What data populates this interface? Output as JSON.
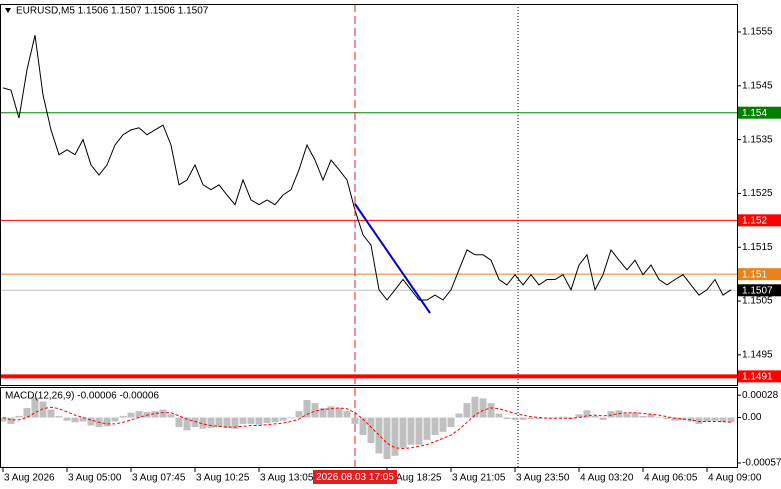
{
  "chart_data": [
    {
      "type": "line",
      "title": "EURUSD,M5 1.1506 1.1507 1.1506 1.1507",
      "color": "#000000",
      "categories": [
        "3 Aug 2026",
        null,
        null,
        null,
        null,
        null,
        null,
        null,
        "3 Aug 05:00",
        null,
        null,
        null,
        null,
        null,
        null,
        null,
        "3 Aug 07:45",
        null,
        null,
        null,
        null,
        null,
        null,
        null,
        "3 Aug 10:25",
        null,
        null,
        null,
        null,
        null,
        null,
        null,
        "3 Aug 13:05",
        null,
        null,
        null,
        null,
        null,
        null,
        null,
        null,
        null,
        null,
        null,
        "2026.08.03 17:05",
        null,
        null,
        null,
        "Aug 18:25",
        null,
        null,
        null,
        null,
        null,
        null,
        null,
        "3 Aug 21:05",
        null,
        null,
        null,
        null,
        null,
        null,
        null,
        "3 Aug 23:50",
        null,
        null,
        null,
        null,
        null,
        null,
        null,
        "4 Aug 03:20",
        null,
        null,
        null,
        null,
        null,
        null,
        null,
        "4 Aug 06:05",
        null,
        null,
        null,
        null,
        null,
        null,
        null,
        "4 Aug 09:00",
        null,
        null,
        null
      ],
      "values": [
        1.15446,
        1.15442,
        1.1539,
        1.1548,
        1.15544,
        1.15433,
        1.15368,
        1.15322,
        1.15331,
        1.15322,
        1.1535,
        1.15303,
        1.15284,
        1.15303,
        1.1534,
        1.15359,
        1.15368,
        1.15372,
        1.15359,
        1.15368,
        1.15377,
        1.1534,
        1.15266,
        1.15275,
        1.15303,
        1.15266,
        1.15257,
        1.15266,
        1.15247,
        1.15229,
        1.15275,
        1.15238,
        1.15229,
        1.15238,
        1.15229,
        1.15247,
        1.15257,
        1.15294,
        1.1534,
        1.15312,
        1.15275,
        1.15312,
        1.15294,
        1.15275,
        1.15219,
        1.15173,
        1.15154,
        1.15071,
        1.15052,
        1.15071,
        1.1509,
        1.15071,
        1.15052,
        1.15052,
        1.15061,
        1.15052,
        1.15071,
        1.15108,
        1.15145,
        1.15136,
        1.15136,
        1.15126,
        1.1509,
        1.1508,
        1.15099,
        1.1508,
        1.15099,
        1.1508,
        1.1509,
        1.1509,
        1.15099,
        1.15071,
        1.15117,
        1.15136,
        1.15071,
        1.15099,
        1.15145,
        1.15126,
        1.15108,
        1.15126,
        1.15099,
        1.15117,
        1.1509,
        1.1508,
        1.1509,
        1.15099,
        1.1508,
        1.15061,
        1.15071,
        1.1509,
        1.15061,
        1.15071
      ],
      "ylim": [
        1.14894,
        1.15602
      ],
      "yticks": [
        1.1555,
        1.1545,
        1.1535,
        1.1525,
        1.1515,
        1.1505,
        1.1495
      ],
      "levels": [
        {
          "value": 1.154,
          "color": "#008000"
        },
        {
          "value": 1.152,
          "color": "#ff0000"
        },
        {
          "value": 1.151,
          "color": "#e8831c"
        },
        {
          "value": 1.1507,
          "color": "#c0c0c0",
          "label_color": "#000000"
        },
        {
          "value": 1.1491,
          "color": "#ff0000",
          "width": 4
        }
      ]
    },
    {
      "type": "macd",
      "title": "MACD(12,26,9) -0.00006 -0.00006",
      "ylim": [
        -0.00062,
        0.00037
      ],
      "yticks": [
        0.00028,
        {
          "value": 0,
          "label": "0.00"
        },
        -0.00057
      ],
      "series": [
        {
          "kind": "bar",
          "color": "#c0c0c0",
          "values": [
            -5e-05,
            -8e-05,
            2e-05,
            0.00012,
            0.00025,
            0.0002,
            0.0001,
            2e-05,
            -4e-05,
            -6e-05,
            -5e-05,
            -0.0001,
            -0.00012,
            -0.00011,
            -5e-05,
            2e-05,
            6e-05,
            8e-05,
            7e-05,
            8e-05,
            0.0001,
            4e-05,
            -0.00012,
            -0.00016,
            -0.00012,
            -0.00014,
            -0.00013,
            -0.00012,
            -0.00013,
            -0.00014,
            -8e-05,
            -8e-05,
            -9e-05,
            -7e-05,
            -6e-05,
            -4e-05,
            -1e-05,
            8e-05,
            0.00022,
            0.00018,
            0.00012,
            0.00014,
            0.00012,
            8e-05,
            -8e-05,
            -0.00022,
            -0.00032,
            -0.00045,
            -0.00052,
            -0.00048,
            -0.00038,
            -0.00034,
            -0.00034,
            -0.00028,
            -0.00022,
            -0.00018,
            -0.00012,
            5e-05,
            0.00018,
            0.00026,
            0.00024,
            0.00018,
            5e-05,
            -2e-05,
            -3e-05,
            -3e-05,
            -2e-05,
            -2e-05,
            -1e-05,
            -1e-05,
            1e-05,
            -2e-05,
            4e-05,
            9e-05,
            2e-05,
            -3e-05,
            8e-05,
            9e-05,
            5e-05,
            6e-05,
            2e-05,
            4e-05,
            1e-05,
            -2e-05,
            -4e-05,
            -3e-05,
            -5e-05,
            -8e-05,
            -5e-05,
            -4e-05,
            -6e-05,
            -6e-05
          ]
        },
        {
          "kind": "dashed",
          "color": "#ff0000",
          "values": [
            0,
            -3e-05,
            -3e-05,
            0,
            6e-05,
            0.00011,
            0.00013,
            0.00011,
            7e-05,
            3e-05,
            0,
            -3e-05,
            -6e-05,
            -8e-05,
            -8e-05,
            -6e-05,
            -3e-05,
            0,
            3e-05,
            5e-05,
            6e-05,
            6e-05,
            2e-05,
            -2e-05,
            -5e-05,
            -8e-05,
            -0.0001,
            -0.00011,
            -0.00012,
            -0.00012,
            -0.00011,
            -0.0001,
            -0.0001,
            -9e-05,
            -8e-05,
            -7e-05,
            -5e-05,
            -2e-05,
            4e-05,
            8e-05,
            0.0001,
            0.00011,
            0.00012,
            0.00011,
            6e-05,
            -2e-05,
            -0.00012,
            -0.00022,
            -0.00032,
            -0.00038,
            -0.00039,
            -0.00038,
            -0.00036,
            -0.00034,
            -0.0003,
            -0.00026,
            -0.00022,
            -0.00015,
            -6e-05,
            3e-05,
            9e-05,
            0.00012,
            0.00011,
            8e-05,
            5e-05,
            3e-05,
            1e-05,
            0,
            -1e-05,
            -1e-05,
            -1e-05,
            -1e-05,
            0,
            2e-05,
            3e-05,
            2e-05,
            3e-05,
            5e-05,
            6e-05,
            6e-05,
            5e-05,
            4e-05,
            3e-05,
            1e-05,
            -1e-05,
            -2e-05,
            -3e-05,
            -5e-05,
            -5e-05,
            -5e-05,
            -5e-05,
            -6e-05
          ]
        }
      ]
    }
  ]
}
